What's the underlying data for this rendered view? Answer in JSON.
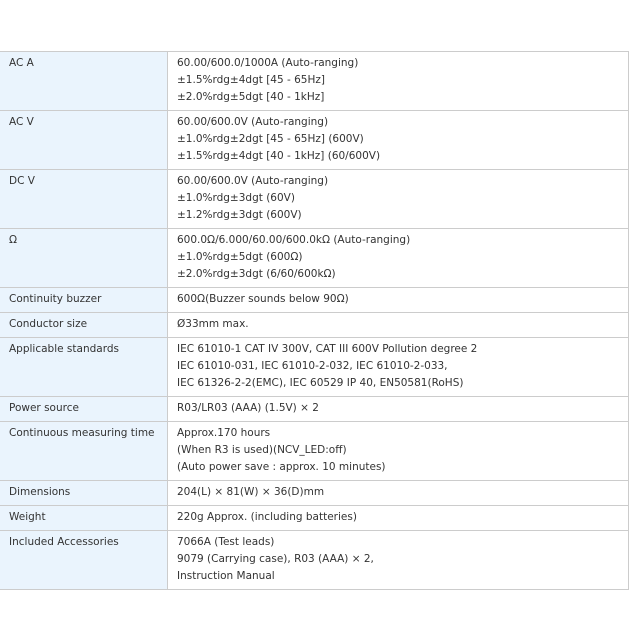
{
  "colors": {
    "label_bg": "#eaf4fd",
    "border": "#cccccc",
    "text": "#333333"
  },
  "specs": [
    {
      "label": "AC A",
      "values": [
        "60.00/600.0/1000A (Auto-ranging)",
        "±1.5%rdg±4dgt [45 - 65Hz]",
        "±2.0%rdg±5dgt [40 - 1kHz]"
      ]
    },
    {
      "label": "AC V",
      "values": [
        "60.00/600.0V (Auto-ranging)",
        "±1.0%rdg±2dgt [45 - 65Hz] (600V)",
        "±1.5%rdg±4dgt [40 - 1kHz] (60/600V)"
      ]
    },
    {
      "label": "DC V",
      "values": [
        "60.00/600.0V (Auto-ranging)",
        "±1.0%rdg±3dgt (60V)",
        "±1.2%rdg±3dgt (600V)"
      ]
    },
    {
      "label": "Ω",
      "values": [
        "600.0Ω/6.000/60.00/600.0kΩ (Auto-ranging)",
        "±1.0%rdg±5dgt (600Ω)",
        "±2.0%rdg±3dgt (6/60/600kΩ)"
      ]
    },
    {
      "label": "Continuity buzzer",
      "values": [
        "600Ω(Buzzer sounds below 90Ω)"
      ]
    },
    {
      "label": "Conductor size",
      "values": [
        "Ø33mm max."
      ]
    },
    {
      "label": "Applicable standards",
      "values": [
        "IEC 61010-1 CAT IV 300V, CAT III 600V Pollution degree 2",
        "IEC 61010-031, IEC 61010-2-032, IEC 61010-2-033,",
        "IEC 61326-2-2(EMC), IEC 60529 IP 40, EN50581(RoHS)"
      ]
    },
    {
      "label": "Power source",
      "values": [
        "R03/LR03 (AAA) (1.5V) × 2"
      ]
    },
    {
      "label": "Continuous measuring time",
      "values": [
        "Approx.170 hours",
        "(When R3 is used)(NCV_LED:off)",
        "(Auto power save : approx. 10 minutes)"
      ]
    },
    {
      "label": "Dimensions",
      "values": [
        "204(L) × 81(W) × 36(D)mm"
      ]
    },
    {
      "label": "Weight",
      "values": [
        "220g Approx. (including batteries)"
      ]
    },
    {
      "label": "Included Accessories",
      "values": [
        "7066A (Test leads)",
        "9079 (Carrying case), R03 (AAA) × 2,",
        "Instruction Manual"
      ]
    }
  ]
}
